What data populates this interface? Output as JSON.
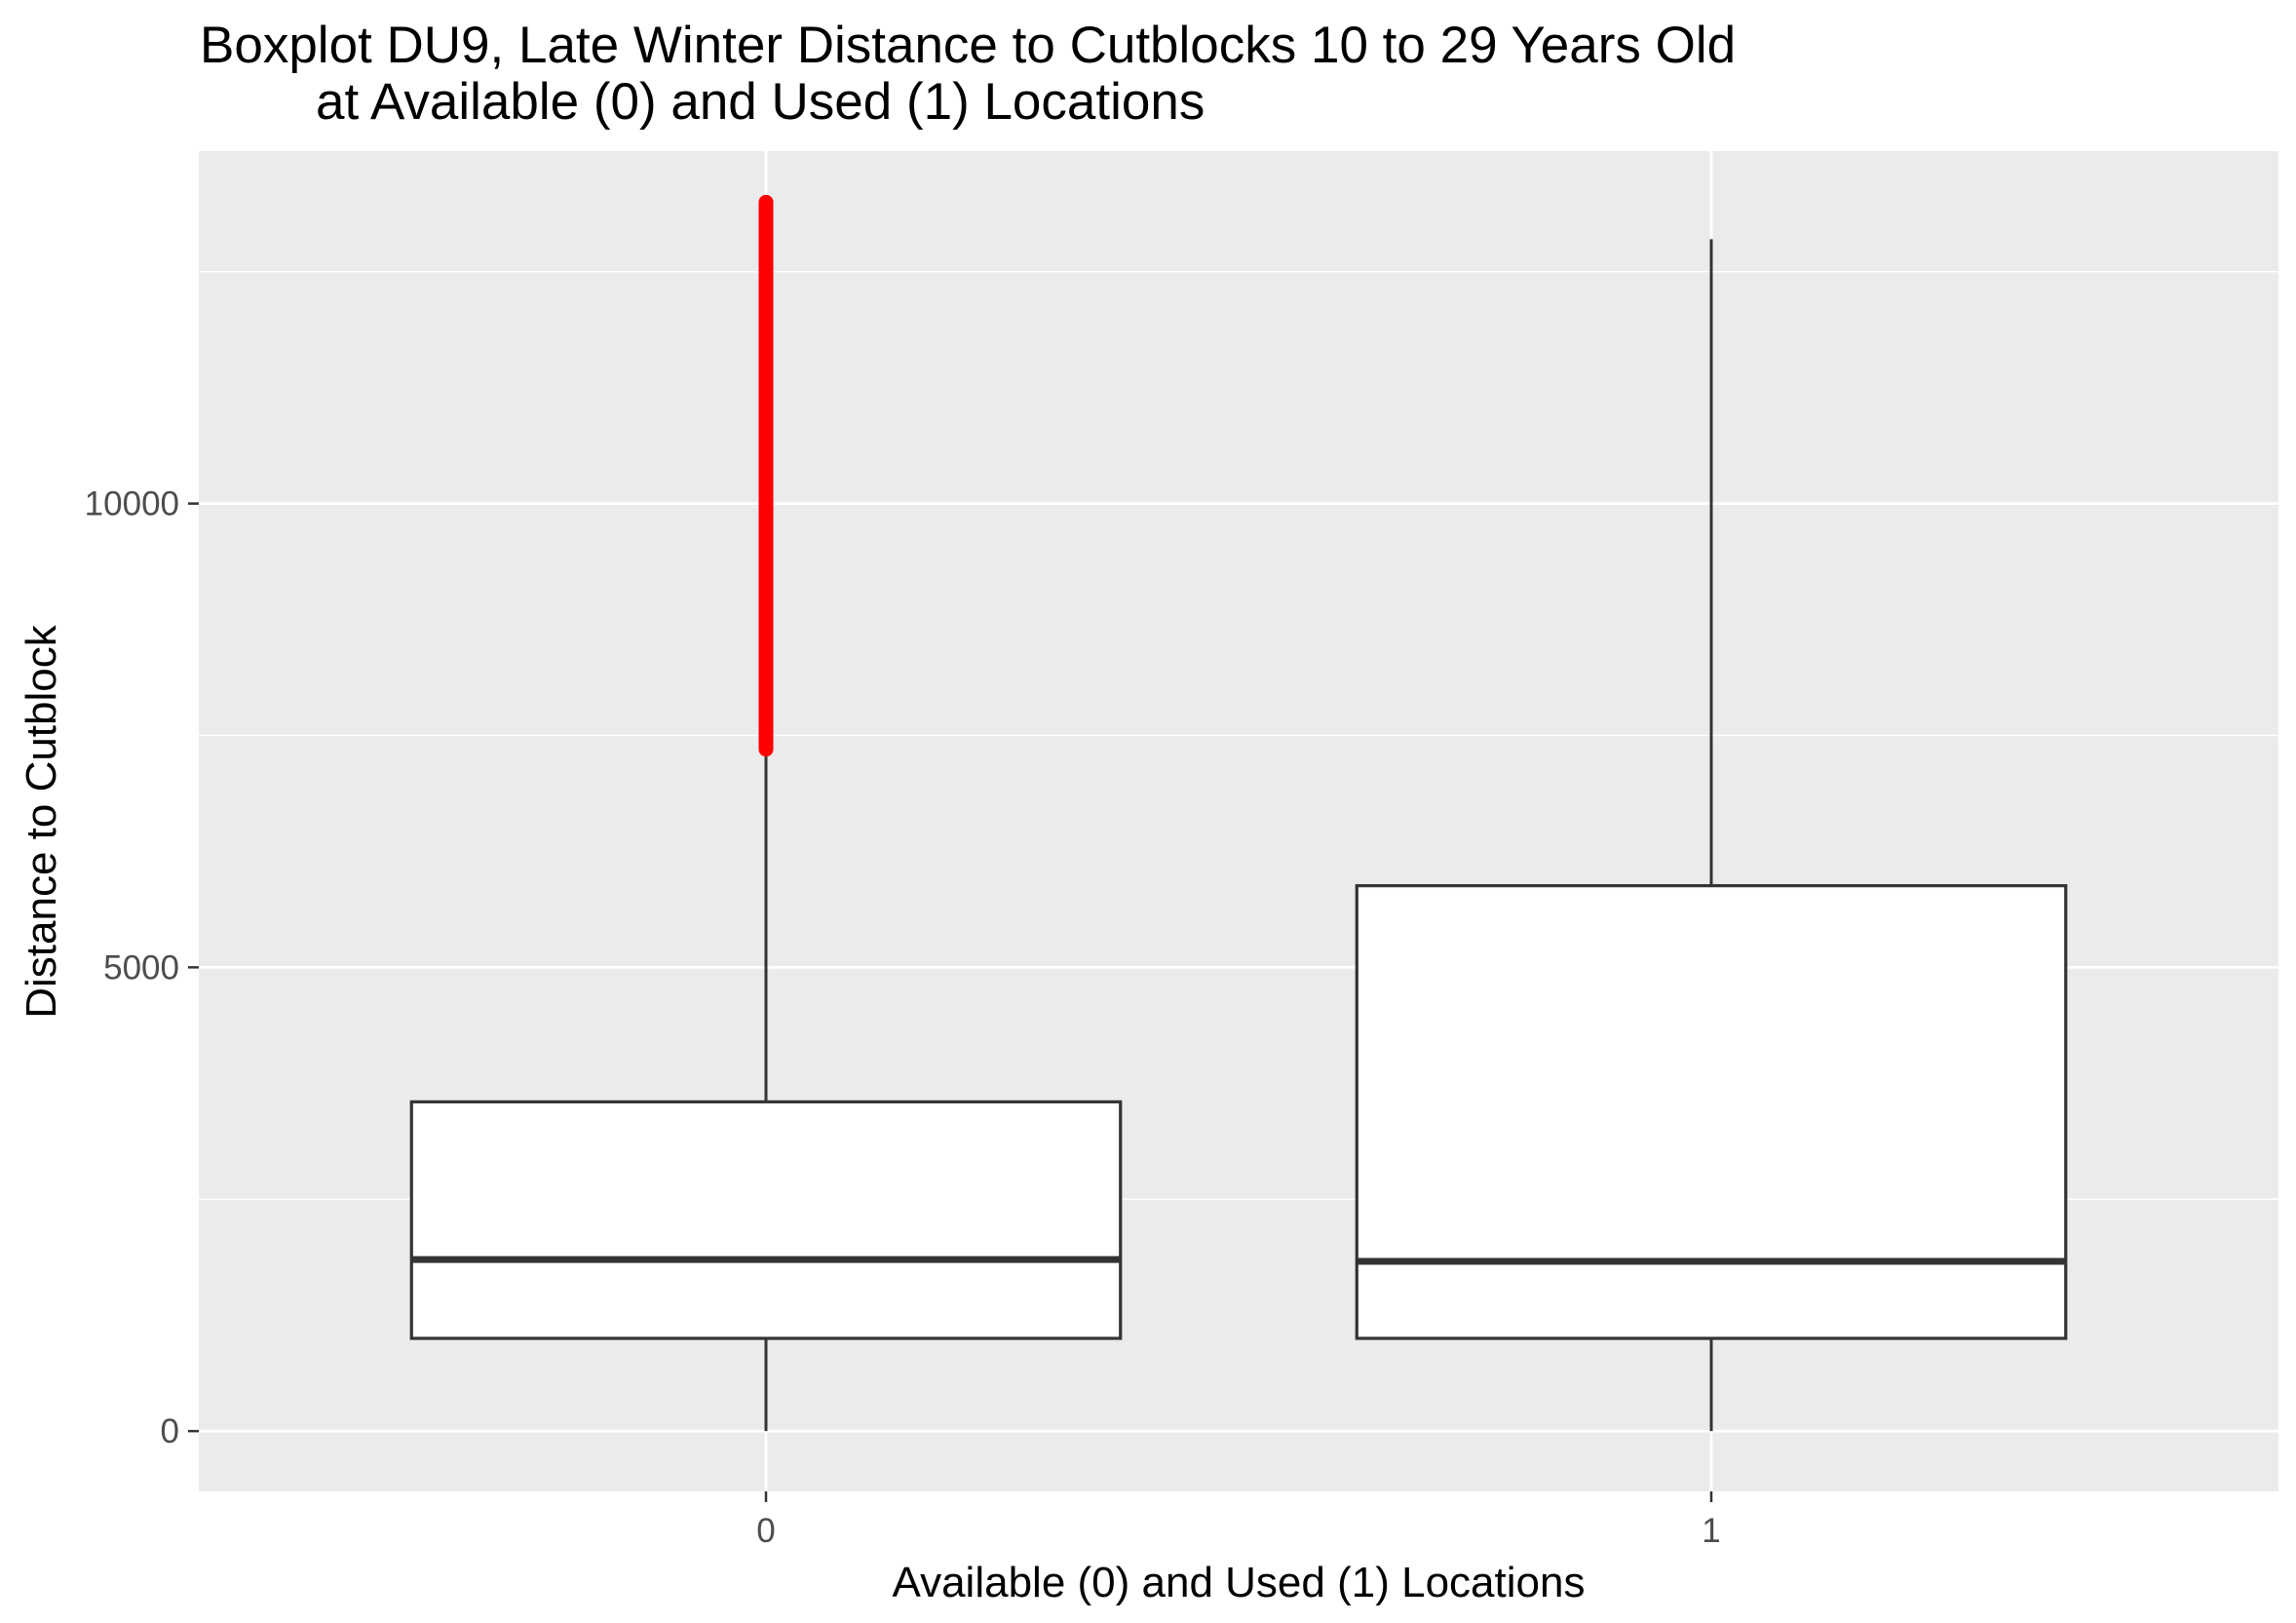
{
  "chart_data": {
    "type": "boxplot",
    "title_lines": [
      "Boxplot DU9, Late Winter Distance to Cutblocks 10 to 29 Years Old",
      "at Available (0) and Used (1) Locations"
    ],
    "xlabel": "Available (0) and Used (1) Locations",
    "ylabel": "Distance to Cutblock",
    "ylim": [
      -650,
      13800
    ],
    "y_ticks": [
      0,
      5000,
      10000
    ],
    "y_tick_labels": [
      "0",
      "5000",
      "10000"
    ],
    "y_minor_ticks": [
      2500,
      7500,
      12500
    ],
    "grid": true,
    "categories": [
      "0",
      "1"
    ],
    "boxes": [
      {
        "category": "0",
        "whisker_low": 0,
        "q1": 1000,
        "median": 1850,
        "q3": 3550,
        "whisker_high": 7350,
        "outlier_range": [
          7350,
          13250
        ],
        "outlier_color": "#ff0000"
      },
      {
        "category": "1",
        "whisker_low": 0,
        "q1": 1000,
        "median": 1830,
        "q3": 5880,
        "whisker_high": 12850
      }
    ],
    "colors": {
      "panel_background": "#ebebeb",
      "grid": "#ffffff",
      "box_fill": "#ffffff",
      "box_stroke": "#333333",
      "outlier": "#ff0000"
    }
  }
}
